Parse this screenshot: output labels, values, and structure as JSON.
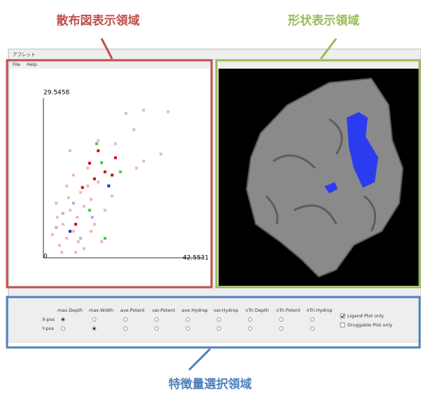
{
  "annotations": {
    "scatter": "散布図表示領域",
    "shape": "形状表示領域",
    "features": "特徴量選択領域"
  },
  "window": {
    "title": "アプレット",
    "menu": [
      "File",
      "Help"
    ]
  },
  "scatter": {
    "type": "scatter",
    "xlim": [
      0,
      42.5531
    ],
    "ylim": [
      0,
      29.5458
    ],
    "series": [
      {
        "color": "#f4b4bc",
        "points": [
          [
            4.3,
            2.3
          ],
          [
            6.2,
            3.6
          ],
          [
            8.0,
            4.9
          ],
          [
            5.2,
            6.2
          ],
          [
            9.0,
            7.5
          ],
          [
            7.1,
            8.8
          ],
          [
            10.8,
            9.5
          ],
          [
            3.4,
            10.1
          ],
          [
            12.7,
            10.8
          ],
          [
            9.9,
            12.1
          ],
          [
            6.2,
            13.3
          ],
          [
            14.6,
            14.0
          ],
          [
            8.0,
            15.3
          ],
          [
            11.8,
            16.6
          ],
          [
            7.1,
            19.8
          ],
          [
            16.4,
            8.8
          ],
          [
            13.6,
            6.2
          ],
          [
            4.9,
            1.0
          ],
          [
            10.8,
            1.7
          ],
          [
            2.4,
            4.3
          ],
          [
            15.5,
            3.0
          ],
          [
            18.3,
            11.4
          ],
          [
            9.3,
            3.0
          ],
          [
            6.7,
            11.1
          ],
          [
            12.7,
            4.9
          ],
          [
            3.7,
            7.5
          ],
          [
            11.8,
            13.3
          ],
          [
            26.7,
            17.9
          ],
          [
            24.8,
            16.6
          ],
          [
            8.6,
            1.0
          ]
        ]
      },
      {
        "color": "#cc1020",
        "points": [
          [
            12.3,
            17.5
          ],
          [
            14.6,
            19.8
          ],
          [
            16.4,
            15.9
          ],
          [
            10.4,
            13.0
          ],
          [
            18.3,
            15.3
          ],
          [
            13.6,
            14.6
          ],
          [
            8.6,
            6.2
          ],
          [
            19.2,
            18.5
          ]
        ]
      },
      {
        "color": "#44cc44",
        "points": [
          [
            20.5,
            15.9
          ],
          [
            15.5,
            17.6
          ],
          [
            14.2,
            21.1
          ],
          [
            16.4,
            3.6
          ],
          [
            12.3,
            8.8
          ]
        ]
      },
      {
        "color": "#2233cc",
        "points": [
          [
            17.4,
            13.3
          ],
          [
            7.1,
            4.9
          ]
        ]
      },
      {
        "color": "#b8a8e8",
        "points": [
          [
            5.2,
            8.2
          ],
          [
            9.9,
            3.6
          ],
          [
            3.4,
            5.6
          ],
          [
            13.0,
            7.5
          ],
          [
            8.0,
            10.1
          ]
        ]
      },
      {
        "color": "#c8c8c8",
        "points": [
          [
            22.0,
            26.7
          ],
          [
            26.7,
            27.3
          ],
          [
            31.3,
            19.2
          ],
          [
            24.1,
            23.7
          ],
          [
            14.6,
            21.7
          ],
          [
            19.2,
            21.1
          ],
          [
            33.2,
            27.0
          ]
        ]
      }
    ]
  },
  "features": {
    "columns": [
      "max.Depth",
      "max.Width",
      "ave.Potent",
      "var.Potent",
      "ave.Hydrop",
      "var.Hydrop",
      "nTri.Depth",
      "nTri.Potent",
      "nTri.Hydrop"
    ],
    "rows": [
      {
        "label": "X-pos",
        "selected": 0
      },
      {
        "label": "Y-pos",
        "selected": 1
      }
    ],
    "checkboxes": [
      {
        "label": "Ligand Plot only",
        "checked": true
      },
      {
        "label": "Druggable Plot only",
        "checked": false
      }
    ]
  }
}
